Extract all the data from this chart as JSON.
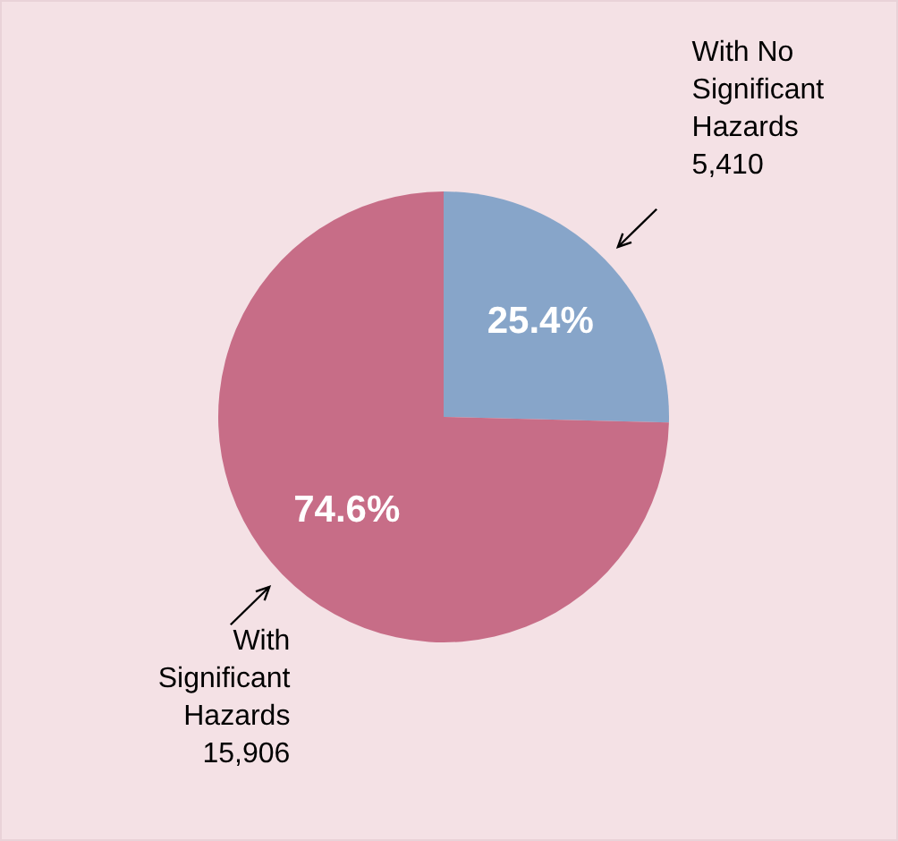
{
  "chart_data": {
    "type": "pie",
    "categories": [
      "With No Significant Hazards",
      "With Significant Hazards"
    ],
    "values": [
      25.4,
      74.6
    ],
    "annotations": [
      "5,410",
      "15,906"
    ],
    "colors": [
      "#87a5c9",
      "#c76d87"
    ],
    "value_labels": [
      "25.4%",
      "74.6%"
    ]
  }
}
